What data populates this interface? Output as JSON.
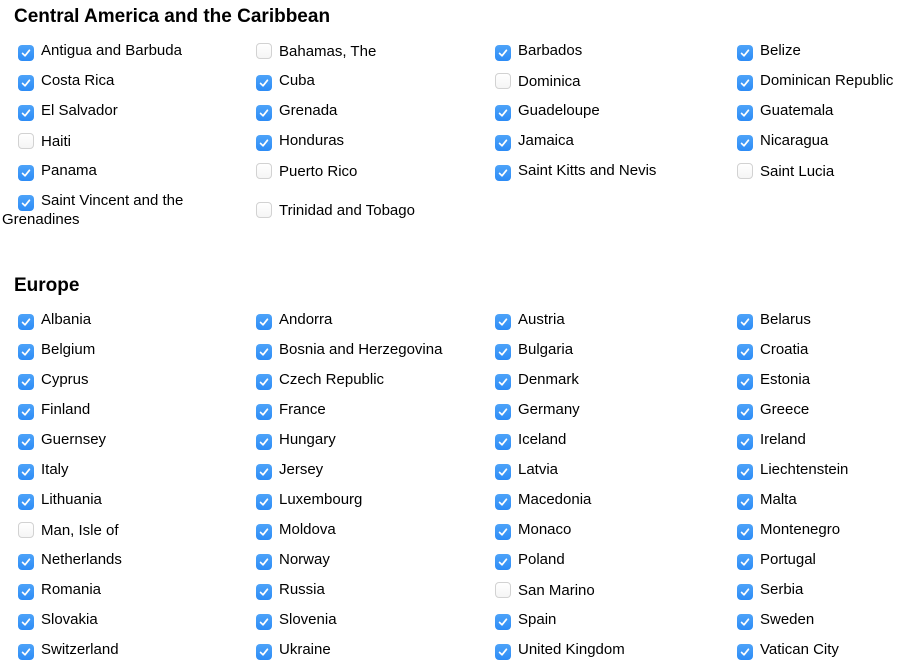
{
  "colors": {
    "background": "#ffffff",
    "text": "#000000",
    "checkbox_checked_top": "#4da3f9",
    "checkbox_checked_bottom": "#2d8cf6",
    "checkbox_unchecked_border": "#d2d2d2",
    "checkmark": "#ffffff"
  },
  "sections": [
    {
      "title": "Central America and the Caribbean",
      "items": [
        {
          "label": "Antigua and Barbuda",
          "checked": true
        },
        {
          "label": "Bahamas, The",
          "checked": false
        },
        {
          "label": "Barbados",
          "checked": true
        },
        {
          "label": "Belize",
          "checked": true
        },
        {
          "label": "Costa Rica",
          "checked": true
        },
        {
          "label": "Cuba",
          "checked": true
        },
        {
          "label": "Dominica",
          "checked": false
        },
        {
          "label": "Dominican Republic",
          "checked": true
        },
        {
          "label": "El Salvador",
          "checked": true
        },
        {
          "label": "Grenada",
          "checked": true
        },
        {
          "label": "Guadeloupe",
          "checked": true
        },
        {
          "label": "Guatemala",
          "checked": true
        },
        {
          "label": "Haiti",
          "checked": false
        },
        {
          "label": "Honduras",
          "checked": true
        },
        {
          "label": "Jamaica",
          "checked": true
        },
        {
          "label": "Nicaragua",
          "checked": true
        },
        {
          "label": "Panama",
          "checked": true
        },
        {
          "label": "Puerto Rico",
          "checked": false
        },
        {
          "label": "Saint Kitts and Nevis",
          "checked": true
        },
        {
          "label": "Saint Lucia",
          "checked": false
        },
        {
          "label": "Saint Vincent and the Grenadines",
          "checked": true
        },
        {
          "label": "Trinidad and Tobago",
          "checked": false
        }
      ]
    },
    {
      "title": "Europe",
      "items": [
        {
          "label": "Albania",
          "checked": true
        },
        {
          "label": "Andorra",
          "checked": true
        },
        {
          "label": "Austria",
          "checked": true
        },
        {
          "label": "Belarus",
          "checked": true
        },
        {
          "label": "Belgium",
          "checked": true
        },
        {
          "label": "Bosnia and Herzegovina",
          "checked": true
        },
        {
          "label": "Bulgaria",
          "checked": true
        },
        {
          "label": "Croatia",
          "checked": true
        },
        {
          "label": "Cyprus",
          "checked": true
        },
        {
          "label": "Czech Republic",
          "checked": true
        },
        {
          "label": "Denmark",
          "checked": true
        },
        {
          "label": "Estonia",
          "checked": true
        },
        {
          "label": "Finland",
          "checked": true
        },
        {
          "label": "France",
          "checked": true
        },
        {
          "label": "Germany",
          "checked": true
        },
        {
          "label": "Greece",
          "checked": true
        },
        {
          "label": "Guernsey",
          "checked": true
        },
        {
          "label": "Hungary",
          "checked": true
        },
        {
          "label": "Iceland",
          "checked": true
        },
        {
          "label": "Ireland",
          "checked": true
        },
        {
          "label": "Italy",
          "checked": true
        },
        {
          "label": "Jersey",
          "checked": true
        },
        {
          "label": "Latvia",
          "checked": true
        },
        {
          "label": "Liechtenstein",
          "checked": true
        },
        {
          "label": "Lithuania",
          "checked": true
        },
        {
          "label": "Luxembourg",
          "checked": true
        },
        {
          "label": "Macedonia",
          "checked": true
        },
        {
          "label": "Malta",
          "checked": true
        },
        {
          "label": "Man, Isle of",
          "checked": false
        },
        {
          "label": "Moldova",
          "checked": true
        },
        {
          "label": "Monaco",
          "checked": true
        },
        {
          "label": "Montenegro",
          "checked": true
        },
        {
          "label": "Netherlands",
          "checked": true
        },
        {
          "label": "Norway",
          "checked": true
        },
        {
          "label": "Poland",
          "checked": true
        },
        {
          "label": "Portugal",
          "checked": true
        },
        {
          "label": "Romania",
          "checked": true
        },
        {
          "label": "Russia",
          "checked": true
        },
        {
          "label": "San Marino",
          "checked": false
        },
        {
          "label": "Serbia",
          "checked": true
        },
        {
          "label": "Slovakia",
          "checked": true
        },
        {
          "label": "Slovenia",
          "checked": true
        },
        {
          "label": "Spain",
          "checked": true
        },
        {
          "label": "Sweden",
          "checked": true
        },
        {
          "label": "Switzerland",
          "checked": true
        },
        {
          "label": "Ukraine",
          "checked": true
        },
        {
          "label": "United Kingdom",
          "checked": true
        },
        {
          "label": "Vatican City",
          "checked": true
        }
      ]
    }
  ]
}
